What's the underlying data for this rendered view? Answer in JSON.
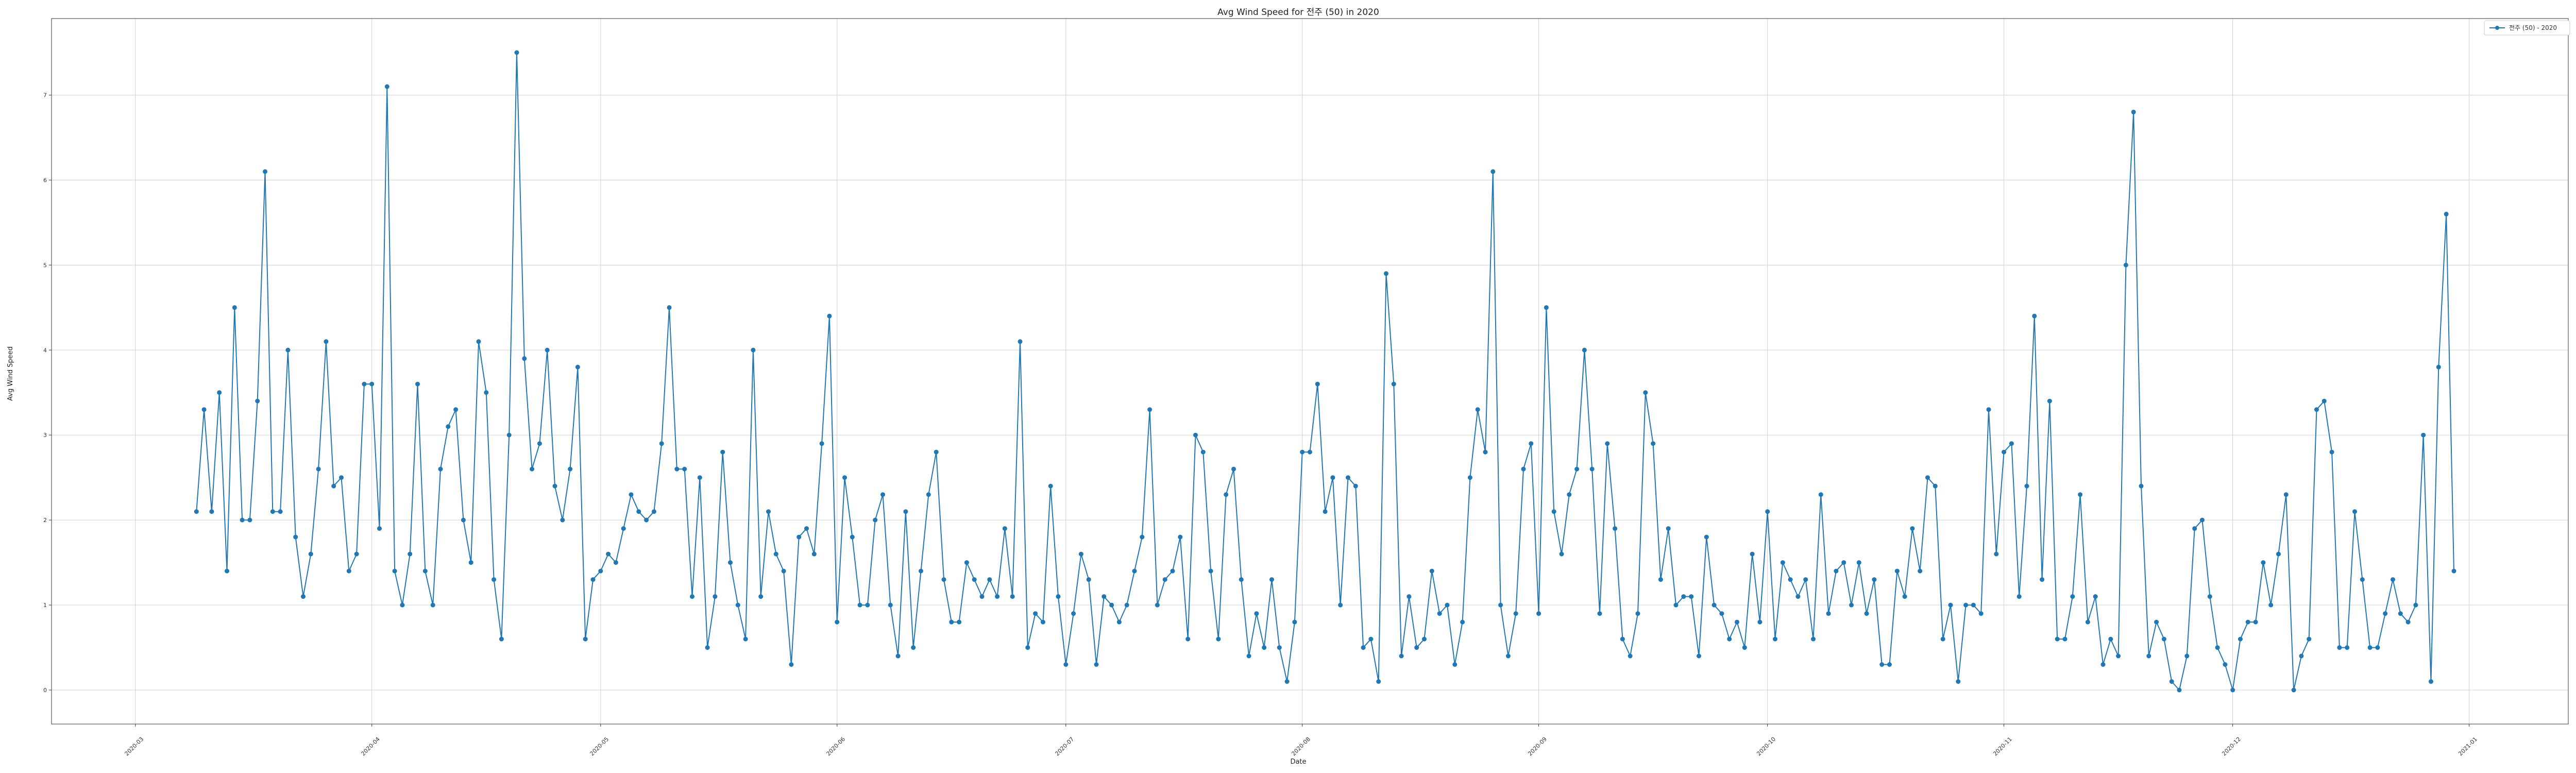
{
  "chart_data": {
    "type": "line",
    "title": "Avg Wind Speed for 전주 (50) in 2020",
    "xlabel": "Date",
    "ylabel": "Avg Wind Speed",
    "legend": {
      "label": "전주 (50) - 2020",
      "position": "top-right"
    },
    "grid": true,
    "color": "#1f77b4",
    "xlim": [
      "2020-02-19",
      "2021-01-14"
    ],
    "ylim": [
      -0.4,
      7.9
    ],
    "x_ticks": [
      "2020-03",
      "2020-04",
      "2020-05",
      "2020-06",
      "2020-07",
      "2020-08",
      "2020-09",
      "2020-10",
      "2020-11",
      "2020-12",
      "2021-01"
    ],
    "y_ticks": [
      "0",
      "1",
      "2",
      "3",
      "4",
      "5",
      "6",
      "7"
    ],
    "series": [
      {
        "name": "전주 (50) - 2020",
        "x_start": "2020-03-09",
        "x_step_days": 1,
        "values": [
          2.1,
          3.3,
          2.1,
          3.5,
          1.4,
          4.5,
          2.0,
          2.0,
          3.4,
          6.1,
          2.1,
          2.1,
          4.0,
          1.8,
          1.1,
          1.6,
          2.6,
          4.1,
          2.4,
          2.5,
          1.4,
          1.6,
          3.6,
          3.6,
          1.9,
          7.1,
          1.4,
          1.0,
          1.6,
          3.6,
          1.4,
          1.0,
          2.6,
          3.1,
          3.3,
          2.0,
          1.5,
          4.1,
          3.5,
          1.3,
          0.6,
          3.0,
          7.5,
          3.9,
          2.6,
          2.9,
          4.0,
          2.4,
          2.0,
          2.6,
          3.8,
          0.6,
          1.3,
          1.4,
          1.6,
          1.5,
          1.9,
          2.3,
          2.1,
          2.0,
          2.1,
          2.9,
          4.5,
          2.6,
          2.6,
          1.1,
          2.5,
          0.5,
          1.1,
          2.8,
          1.5,
          1.0,
          0.6,
          4.0,
          1.1,
          2.1,
          1.6,
          1.4,
          0.3,
          1.8,
          1.9,
          1.6,
          2.9,
          4.4,
          0.8,
          2.5,
          1.8,
          1.0,
          1.0,
          2.0,
          2.3,
          1.0,
          0.4,
          2.1,
          0.5,
          1.4,
          2.3,
          2.8,
          1.3,
          0.8,
          0.8,
          1.5,
          1.3,
          1.1,
          1.3,
          1.1,
          1.9,
          1.1,
          4.1,
          0.5,
          0.9,
          0.8,
          2.4,
          1.1,
          0.3,
          0.9,
          1.6,
          1.3,
          0.3,
          1.1,
          1.0,
          0.8,
          1.0,
          1.4,
          1.8,
          3.3,
          1.0,
          1.3,
          1.4,
          1.8,
          0.6,
          3.0,
          2.8,
          1.4,
          0.6,
          2.3,
          2.6,
          1.3,
          0.4,
          0.9,
          0.5,
          1.3,
          0.5,
          0.1,
          0.8,
          2.8,
          2.8,
          3.6,
          2.1,
          2.5,
          1.0,
          2.5,
          2.4,
          0.5,
          0.6,
          0.1,
          4.9,
          3.6,
          0.4,
          1.1,
          0.5,
          0.6,
          1.4,
          0.9,
          1.0,
          0.3,
          0.8,
          2.5,
          3.3,
          2.8,
          6.1,
          1.0,
          0.4,
          0.9,
          2.6,
          2.9,
          0.9,
          4.5,
          2.1,
          1.6,
          2.3,
          2.6,
          4.0,
          2.6,
          0.9,
          2.9,
          1.9,
          0.6,
          0.4,
          0.9,
          3.5,
          2.9,
          1.3,
          1.9,
          1.0,
          1.1,
          1.1,
          0.4,
          1.8,
          1.0,
          0.9,
          0.6,
          0.8,
          0.5,
          1.6,
          0.8,
          2.1,
          0.6,
          1.5,
          1.3,
          1.1,
          1.3,
          0.6,
          2.3,
          0.9,
          1.4,
          1.5,
          1.0,
          1.5,
          0.9,
          1.3,
          0.3,
          0.3,
          1.4,
          1.1,
          1.9,
          1.4,
          2.5,
          2.4,
          0.6,
          1.0,
          0.1,
          1.0,
          1.0,
          0.9,
          3.3,
          1.6,
          2.8,
          2.9,
          1.1,
          2.4,
          4.4,
          1.3,
          3.4,
          0.6,
          0.6,
          1.1,
          2.3,
          0.8,
          1.1,
          0.3,
          0.6,
          0.4,
          5.0,
          6.8,
          2.4,
          0.4,
          0.8,
          0.6,
          0.1,
          0.0,
          0.4,
          1.9,
          2.0,
          1.1,
          0.5,
          0.3,
          0.0,
          0.6,
          0.8,
          0.8,
          1.5,
          1.0,
          1.6,
          2.3,
          0.0,
          0.4,
          0.6,
          3.3,
          3.4,
          2.8,
          0.5,
          0.5,
          2.1,
          1.3,
          0.5,
          0.5,
          0.9,
          1.3,
          0.9,
          0.8,
          1.0,
          3.0,
          0.1,
          3.8,
          5.6,
          1.4
        ]
      }
    ]
  }
}
